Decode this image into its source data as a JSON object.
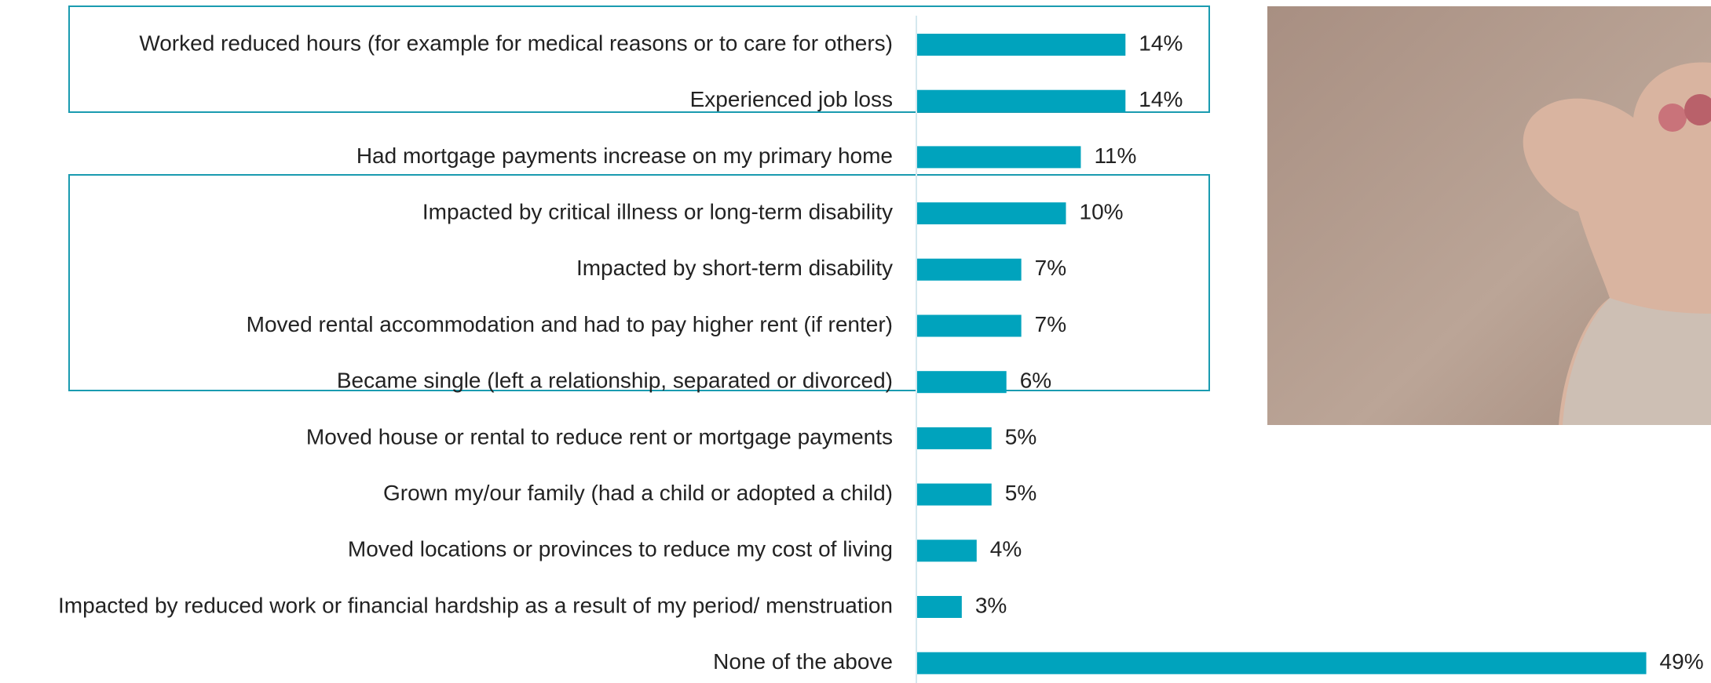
{
  "chart_data": {
    "type": "barh",
    "categories": [
      "Worked reduced hours (for example for medical reasons or to care for others)",
      "Experienced job loss",
      "Had mortgage payments increase on my primary home",
      "Impacted by critical illness or long-term disability",
      "Impacted by short-term disability",
      "Moved rental accommodation and had to pay higher rent (if renter)",
      "Became single (left a relationship, separated or divorced)",
      "Moved house or rental to reduce rent or mortgage payments",
      "Grown my/our family (had a child or adopted a child)",
      "Moved locations or provinces to reduce my cost of living",
      "Impacted by reduced work or financial hardship as a result of my period/ menstruation",
      "None of the above"
    ],
    "values": [
      14,
      14,
      11,
      10,
      7,
      7,
      6,
      5,
      5,
      4,
      3,
      49
    ],
    "value_labels": [
      "14%",
      "14%",
      "11%",
      "10%",
      "7%",
      "7%",
      "6%",
      "5%",
      "5%",
      "4%",
      "3%",
      "49%"
    ],
    "color": "#00a3bd"
  }
}
